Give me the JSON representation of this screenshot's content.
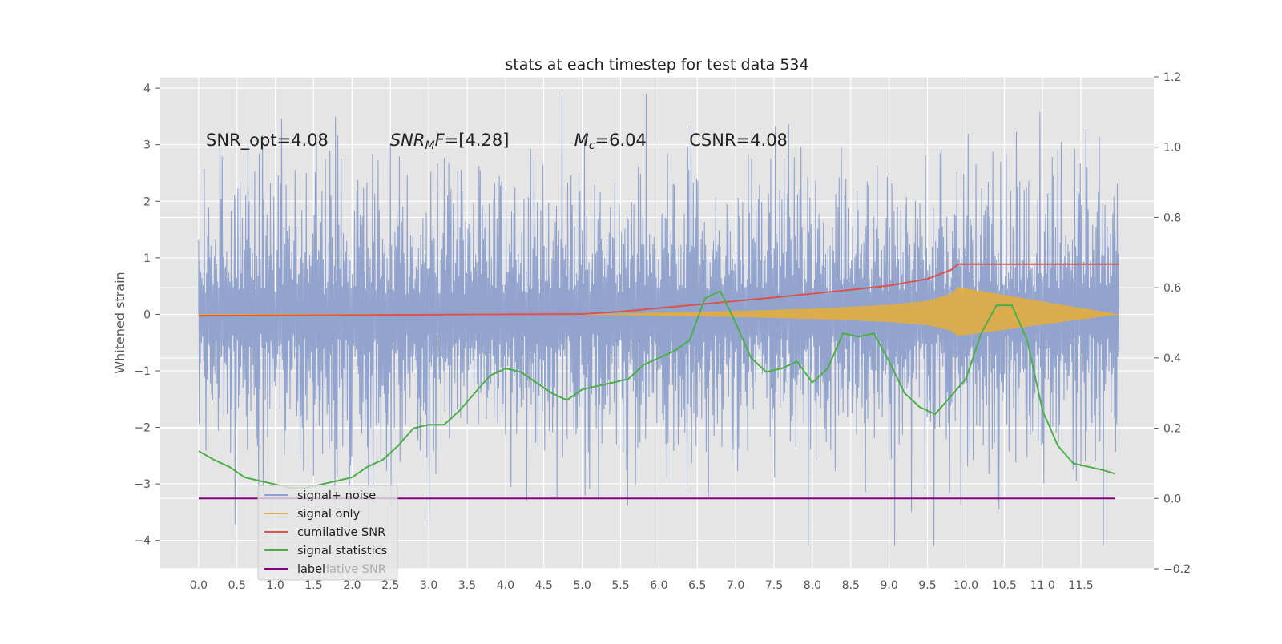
{
  "chart_data": {
    "type": "line",
    "title": "stats at each timestep for test data 534",
    "ylabel": "Whitened strain",
    "xlabel": "",
    "xlim": [
      -0.5,
      12.45
    ],
    "ylim": [
      -4.5,
      4.2
    ],
    "y2lim": [
      -0.2,
      1.2
    ],
    "xticks": [
      0.0,
      0.5,
      1.0,
      1.5,
      2.0,
      2.5,
      3.0,
      3.5,
      4.0,
      4.5,
      5.0,
      5.5,
      6.0,
      6.5,
      7.0,
      7.5,
      8.0,
      8.5,
      9.0,
      9.5,
      10.0,
      10.5,
      11.0,
      11.5
    ],
    "yticks": [
      -4,
      -3,
      -2,
      -1,
      0,
      1,
      2,
      3,
      4
    ],
    "y2ticks": [
      -0.2,
      0.0,
      0.2,
      0.4,
      0.6,
      0.8,
      1.0,
      1.2
    ],
    "grid": true,
    "legend_position": "lower-left",
    "annotations": [
      {
        "text": "SNR_opt=4.08",
        "x": 0.2,
        "y": 3.08
      },
      {
        "text": "SNR_MF=[4.28]",
        "x": 2.6,
        "y": 3.08
      },
      {
        "text": "M_c=6.04",
        "x": 5.0,
        "y": 3.08
      },
      {
        "text": "CSNR=4.08",
        "x": 6.5,
        "y": 3.08
      }
    ],
    "series": [
      {
        "name": "signal+ noise",
        "axis": "left",
        "color": "#8da0cb",
        "note_render": "dense noise band",
        "band_sigma": 1.05,
        "x_range": [
          0.0,
          12.0
        ]
      },
      {
        "name": "signal only",
        "axis": "left",
        "color": "#e5ae38",
        "envelope_x": [
          5.0,
          6.0,
          7.0,
          8.0,
          9.0,
          9.5,
          9.8,
          9.9,
          12.0
        ],
        "envelope_y": [
          0.0,
          0.03,
          0.06,
          0.1,
          0.17,
          0.24,
          0.36,
          0.48,
          0.0
        ]
      },
      {
        "name": "cumilative SNR",
        "axis": "right",
        "color": "#d9534f",
        "x": [
          0.0,
          5.0,
          5.5,
          6.0,
          6.5,
          7.0,
          7.5,
          8.0,
          8.5,
          9.0,
          9.5,
          9.8,
          9.9,
          12.0
        ],
        "values": [
          0.52,
          0.525,
          0.532,
          0.542,
          0.552,
          0.562,
          0.572,
          0.583,
          0.594,
          0.606,
          0.625,
          0.65,
          0.667,
          0.667
        ]
      },
      {
        "name": "signal statistics",
        "axis": "right",
        "color": "#4daf4a",
        "x": [
          0.0,
          0.2,
          0.4,
          0.6,
          0.8,
          1.0,
          1.2,
          1.4,
          1.6,
          1.8,
          2.0,
          2.2,
          2.4,
          2.6,
          2.8,
          3.0,
          3.2,
          3.4,
          3.6,
          3.8,
          4.0,
          4.2,
          4.4,
          4.6,
          4.8,
          5.0,
          5.2,
          5.4,
          5.6,
          5.8,
          6.0,
          6.2,
          6.4,
          6.6,
          6.8,
          7.0,
          7.2,
          7.4,
          7.6,
          7.8,
          8.0,
          8.2,
          8.4,
          8.6,
          8.8,
          9.0,
          9.2,
          9.4,
          9.6,
          9.8,
          10.0,
          10.2,
          10.4,
          10.6,
          10.8,
          11.0,
          11.2,
          11.4,
          11.6,
          11.8,
          11.95
        ],
        "values": [
          0.135,
          0.11,
          0.09,
          0.06,
          0.05,
          0.04,
          0.03,
          0.03,
          0.04,
          0.05,
          0.06,
          0.09,
          0.11,
          0.15,
          0.2,
          0.21,
          0.21,
          0.25,
          0.3,
          0.35,
          0.37,
          0.36,
          0.33,
          0.3,
          0.28,
          0.31,
          0.32,
          0.33,
          0.34,
          0.38,
          0.4,
          0.42,
          0.45,
          0.57,
          0.59,
          0.5,
          0.4,
          0.36,
          0.37,
          0.39,
          0.33,
          0.37,
          0.47,
          0.46,
          0.47,
          0.39,
          0.3,
          0.26,
          0.24,
          0.29,
          0.34,
          0.47,
          0.55,
          0.55,
          0.45,
          0.25,
          0.15,
          0.1,
          0.09,
          0.08,
          0.07
        ]
      },
      {
        "name": "label",
        "axis": "right",
        "color": "#800080",
        "x": [
          0.0,
          11.95
        ],
        "values": [
          0.0,
          0.0
        ]
      }
    ],
    "legend_overlap_text": "lative SNR",
    "colors": {
      "plot_bg": "#e5e5e5",
      "grid": "#ffffff",
      "tick_text": "#555555",
      "title_text": "#222222"
    }
  }
}
